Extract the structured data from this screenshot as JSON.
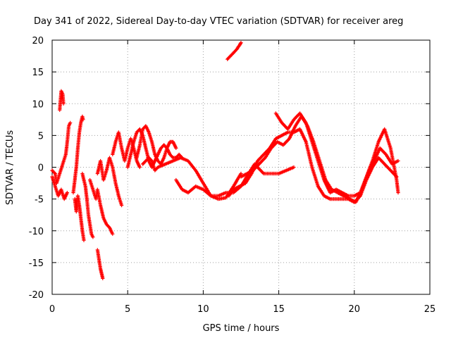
{
  "chart_data": {
    "type": "scatter",
    "title": "Day 341 of 2022, Sidereal Day-to-day VTEC variation (SDTVAR) for receiver areg",
    "xlabel": "GPS time / hours",
    "ylabel": "SDTVAR / TECUs",
    "xlim": [
      0,
      25
    ],
    "ylim": [
      -20,
      20
    ],
    "xticks": [
      "0",
      "5",
      "10",
      "15",
      "20",
      "25"
    ],
    "yticks": [
      "20",
      "15",
      "10",
      "5",
      "0",
      "-5",
      "-10",
      "-15",
      "-20"
    ],
    "grid": true,
    "marker": "+",
    "series": [
      {
        "name": "SDTVAR",
        "color": "#ff0000",
        "tracks": [
          [
            [
              0.0,
              -1.5
            ],
            [
              0.2,
              -3.0
            ],
            [
              0.4,
              -4.5
            ],
            [
              0.6,
              -3.5
            ],
            [
              0.8,
              -5.0
            ],
            [
              1.0,
              -4.0
            ]
          ],
          [
            [
              0.0,
              -0.5
            ],
            [
              0.2,
              -1.0
            ],
            [
              0.3,
              -2.5
            ],
            [
              0.5,
              -1.0
            ],
            [
              0.7,
              0.5
            ],
            [
              0.9,
              2.0
            ],
            [
              1.0,
              4.0
            ],
            [
              1.1,
              6.5
            ],
            [
              1.2,
              7.0
            ]
          ],
          [
            [
              0.5,
              9.0
            ],
            [
              0.55,
              10.5
            ],
            [
              0.6,
              12.0
            ],
            [
              0.7,
              11.5
            ],
            [
              0.75,
              10.0
            ]
          ],
          [
            [
              1.4,
              -4.0
            ],
            [
              1.5,
              -2.0
            ],
            [
              1.6,
              0.0
            ],
            [
              1.7,
              3.0
            ],
            [
              1.8,
              5.5
            ],
            [
              1.9,
              7.0
            ],
            [
              2.0,
              8.0
            ],
            [
              2.05,
              7.5
            ]
          ],
          [
            [
              1.5,
              -5.0
            ],
            [
              1.6,
              -7.0
            ],
            [
              1.7,
              -4.5
            ],
            [
              1.8,
              -6.0
            ],
            [
              1.9,
              -8.0
            ],
            [
              2.0,
              -10.0
            ],
            [
              2.1,
              -11.5
            ]
          ],
          [
            [
              2.0,
              -1.0
            ],
            [
              2.2,
              -3.0
            ],
            [
              2.3,
              -5.0
            ],
            [
              2.4,
              -7.5
            ],
            [
              2.5,
              -9.0
            ],
            [
              2.6,
              -10.5
            ],
            [
              2.7,
              -11.0
            ]
          ],
          [
            [
              3.0,
              -13.0
            ],
            [
              3.1,
              -14.5
            ],
            [
              3.2,
              -16.0
            ],
            [
              3.3,
              -17.0
            ],
            [
              3.35,
              -17.5
            ]
          ],
          [
            [
              2.5,
              -2.0
            ],
            [
              2.7,
              -3.5
            ],
            [
              2.9,
              -5.0
            ],
            [
              3.0,
              -3.5
            ],
            [
              3.2,
              -6.0
            ],
            [
              3.4,
              -8.0
            ],
            [
              3.6,
              -9.0
            ],
            [
              3.8,
              -9.5
            ],
            [
              4.0,
              -10.5
            ]
          ],
          [
            [
              3.0,
              -1.0
            ],
            [
              3.2,
              1.0
            ],
            [
              3.4,
              -2.0
            ],
            [
              3.6,
              -0.5
            ],
            [
              3.8,
              1.5
            ],
            [
              4.0,
              0.0
            ],
            [
              4.2,
              -2.5
            ],
            [
              4.4,
              -4.5
            ],
            [
              4.6,
              -6.0
            ]
          ],
          [
            [
              4.0,
              2.0
            ],
            [
              4.2,
              4.0
            ],
            [
              4.4,
              5.5
            ],
            [
              4.6,
              3.0
            ],
            [
              4.8,
              1.0
            ],
            [
              5.0,
              3.0
            ],
            [
              5.2,
              4.5
            ],
            [
              5.4,
              3.0
            ],
            [
              5.6,
              1.0
            ],
            [
              5.8,
              0.0
            ]
          ],
          [
            [
              5.0,
              0.0
            ],
            [
              5.2,
              2.0
            ],
            [
              5.4,
              4.0
            ],
            [
              5.6,
              5.5
            ],
            [
              5.8,
              6.0
            ],
            [
              6.0,
              5.0
            ],
            [
              6.2,
              3.0
            ],
            [
              6.4,
              1.0
            ],
            [
              6.6,
              0.0
            ],
            [
              6.8,
              1.0
            ],
            [
              7.0,
              2.0
            ],
            [
              7.2,
              3.0
            ],
            [
              7.4,
              3.5
            ],
            [
              7.6,
              3.0
            ],
            [
              7.8,
              2.0
            ],
            [
              8.0,
              1.5
            ],
            [
              8.2,
              1.5
            ],
            [
              8.4,
              2.0
            ],
            [
              8.6,
              1.5
            ]
          ],
          [
            [
              5.6,
              1.5
            ],
            [
              5.8,
              3.5
            ],
            [
              6.0,
              6.0
            ],
            [
              6.2,
              6.5
            ],
            [
              6.4,
              5.5
            ],
            [
              6.6,
              4.0
            ],
            [
              6.8,
              2.0
            ],
            [
              7.0,
              1.0
            ],
            [
              7.2,
              0.5
            ],
            [
              7.4,
              1.5
            ],
            [
              7.6,
              3.0
            ],
            [
              7.8,
              4.0
            ],
            [
              8.0,
              4.0
            ],
            [
              8.2,
              3.0
            ]
          ],
          [
            [
              6.0,
              0.5
            ],
            [
              6.2,
              1.0
            ],
            [
              6.4,
              1.5
            ],
            [
              6.6,
              1.0
            ],
            [
              6.8,
              -0.5
            ],
            [
              7.0,
              0.0
            ],
            [
              7.5,
              0.5
            ],
            [
              8.0,
              1.0
            ],
            [
              8.5,
              1.5
            ],
            [
              9.0,
              1.0
            ],
            [
              9.5,
              -0.5
            ],
            [
              10.0,
              -2.5
            ],
            [
              10.5,
              -4.5
            ],
            [
              11.0,
              -5.0
            ],
            [
              11.5,
              -4.8
            ],
            [
              12.0,
              -3.0
            ],
            [
              12.5,
              -1.0
            ]
          ],
          [
            [
              8.2,
              -2.0
            ],
            [
              8.6,
              -3.5
            ],
            [
              9.0,
              -4.0
            ],
            [
              9.5,
              -3.0
            ],
            [
              10.0,
              -3.5
            ],
            [
              10.5,
              -4.5
            ],
            [
              11.0,
              -4.5
            ],
            [
              11.5,
              -4.0
            ],
            [
              12.0,
              -4.0
            ],
            [
              12.5,
              -3.0
            ],
            [
              13.0,
              -1.0
            ],
            [
              13.4,
              0.5
            ],
            [
              13.6,
              0.0
            ],
            [
              14.0,
              -1.0
            ],
            [
              14.5,
              -1.0
            ],
            [
              15.0,
              -1.0
            ],
            [
              15.5,
              -0.5
            ],
            [
              16.0,
              0.0
            ]
          ],
          [
            [
              11.7,
              -4.5
            ],
            [
              12.0,
              -3.5
            ],
            [
              12.4,
              -3.0
            ],
            [
              12.8,
              -2.5
            ],
            [
              13.2,
              -1.0
            ],
            [
              13.6,
              1.0
            ],
            [
              14.0,
              2.0
            ],
            [
              14.4,
              3.0
            ],
            [
              14.8,
              4.5
            ],
            [
              15.2,
              5.0
            ],
            [
              15.6,
              5.5
            ],
            [
              16.0,
              5.5
            ],
            [
              16.4,
              6.0
            ],
            [
              16.8,
              4.0
            ],
            [
              17.2,
              0.0
            ],
            [
              17.6,
              -3.0
            ],
            [
              18.0,
              -4.5
            ],
            [
              18.4,
              -5.0
            ],
            [
              18.8,
              -5.0
            ],
            [
              19.2,
              -5.0
            ],
            [
              19.6,
              -5.0
            ],
            [
              20.0,
              -5.5
            ],
            [
              20.4,
              -4.5
            ],
            [
              20.8,
              -2.0
            ],
            [
              21.2,
              0.0
            ],
            [
              21.6,
              1.5
            ],
            [
              22.0,
              0.5
            ],
            [
              22.4,
              -0.5
            ],
            [
              22.8,
              -1.5
            ]
          ],
          [
            [
              12.5,
              -1.5
            ],
            [
              12.9,
              -1.0
            ],
            [
              13.3,
              -0.5
            ],
            [
              13.7,
              0.5
            ],
            [
              14.1,
              1.5
            ],
            [
              14.5,
              3.0
            ],
            [
              14.9,
              4.0
            ],
            [
              15.3,
              3.5
            ],
            [
              15.7,
              4.5
            ],
            [
              16.1,
              6.5
            ],
            [
              16.5,
              8.0
            ],
            [
              16.9,
              6.5
            ],
            [
              17.3,
              4.0
            ],
            [
              17.7,
              1.0
            ],
            [
              18.1,
              -2.0
            ],
            [
              18.5,
              -3.5
            ],
            [
              18.9,
              -4.0
            ],
            [
              19.3,
              -4.5
            ],
            [
              19.7,
              -5.0
            ],
            [
              20.1,
              -5.5
            ],
            [
              20.5,
              -3.5
            ],
            [
              20.9,
              -1.0
            ],
            [
              21.3,
              1.0
            ],
            [
              21.7,
              3.0
            ],
            [
              22.1,
              2.0
            ],
            [
              22.5,
              0.5
            ],
            [
              22.9,
              1.0
            ]
          ],
          [
            [
              14.8,
              8.5
            ],
            [
              15.2,
              7.0
            ],
            [
              15.6,
              6.0
            ],
            [
              16.0,
              7.5
            ],
            [
              16.4,
              8.5
            ],
            [
              16.8,
              7.0
            ],
            [
              17.2,
              4.0
            ],
            [
              17.6,
              1.0
            ],
            [
              18.0,
              -2.0
            ],
            [
              18.4,
              -4.0
            ],
            [
              18.8,
              -3.5
            ],
            [
              19.2,
              -4.0
            ],
            [
              19.6,
              -4.5
            ],
            [
              20.0,
              -4.5
            ],
            [
              20.4,
              -4.0
            ],
            [
              20.8,
              -1.5
            ],
            [
              21.2,
              1.0
            ],
            [
              21.6,
              4.0
            ],
            [
              22.0,
              6.0
            ],
            [
              22.4,
              3.0
            ],
            [
              22.8,
              -2.0
            ],
            [
              22.9,
              -4.0
            ]
          ],
          [
            [
              11.6,
              17.0
            ],
            [
              11.8,
              17.5
            ],
            [
              12.0,
              18.0
            ],
            [
              12.2,
              18.5
            ],
            [
              12.4,
              19.2
            ],
            [
              12.5,
              19.6
            ]
          ]
        ]
      }
    ]
  }
}
